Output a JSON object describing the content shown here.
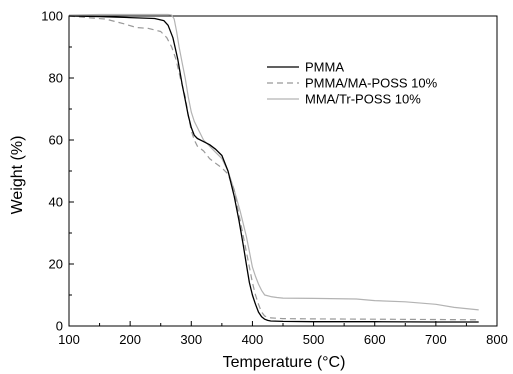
{
  "chart_data": {
    "type": "line",
    "xlabel": "Temperature (°C)",
    "ylabel": "Weight (%)",
    "xlim": [
      100,
      800
    ],
    "ylim": [
      0,
      100
    ],
    "x_ticks": [
      100,
      200,
      300,
      400,
      500,
      600,
      700,
      800
    ],
    "y_ticks": [
      0,
      20,
      40,
      60,
      80,
      100
    ],
    "grid": false,
    "legend_position": "top-right",
    "series": [
      {
        "name": "PMMA",
        "color": "#000000",
        "dash": "solid",
        "x": [
          100,
          150,
          200,
          240,
          255,
          262,
          270,
          278,
          285,
          290,
          295,
          300,
          305,
          310,
          320,
          330,
          340,
          350,
          360,
          370,
          378,
          385,
          390,
          395,
          400,
          405,
          410,
          415,
          420,
          425,
          430,
          450,
          500,
          600,
          700,
          770
        ],
        "y": [
          100,
          99.8,
          99.5,
          99.2,
          98.5,
          97,
          93,
          86,
          78,
          73,
          68,
          64,
          61.5,
          60.5,
          59.5,
          58.5,
          57,
          55,
          50,
          42,
          34,
          26,
          20,
          14,
          10,
          7,
          4.5,
          3,
          2.2,
          1.8,
          1.6,
          1.5,
          1.4,
          1.4,
          1.3,
          1.3
        ]
      },
      {
        "name": "PMMA/MA-POSS 10%",
        "color": "#999999",
        "dash": "dashed",
        "x": [
          100,
          130,
          160,
          190,
          210,
          230,
          250,
          260,
          268,
          275,
          282,
          290,
          295,
          300,
          305,
          310,
          320,
          330,
          340,
          350,
          360,
          370,
          380,
          390,
          395,
          400,
          405,
          410,
          415,
          420,
          430,
          450,
          500,
          600,
          700,
          770
        ],
        "y": [
          100,
          99.5,
          99,
          97.5,
          96.3,
          96,
          95,
          93,
          90,
          86,
          80,
          74,
          68,
          63,
          60,
          58,
          56.5,
          54,
          52.5,
          51,
          49,
          44,
          34,
          24,
          19,
          14,
          10,
          7,
          4.5,
          3.2,
          2.6,
          2.4,
          2.3,
          2.2,
          2.1,
          2.0
        ]
      },
      {
        "name": "MMA/Tr-POSS 10%",
        "color": "#b3b3b3",
        "dash": "solid",
        "x": [
          100,
          150,
          200,
          250,
          262,
          268,
          272,
          276,
          280,
          285,
          290,
          295,
          300,
          305,
          310,
          320,
          330,
          340,
          350,
          360,
          370,
          380,
          390,
          395,
          400,
          405,
          410,
          415,
          420,
          430,
          440,
          450,
          500,
          570,
          600,
          650,
          700,
          730,
          770
        ],
        "y": [
          100.3,
          100.5,
          100.5,
          100.5,
          100.5,
          100.3,
          99,
          95,
          90,
          85,
          80,
          74,
          69,
          66,
          64,
          60,
          58,
          56,
          54,
          50,
          44,
          37,
          29,
          24,
          19,
          16,
          13.5,
          11.5,
          10,
          9.5,
          9.2,
          9.0,
          8.9,
          8.7,
          8.2,
          7.8,
          7.0,
          6.0,
          5.2
        ]
      }
    ]
  }
}
